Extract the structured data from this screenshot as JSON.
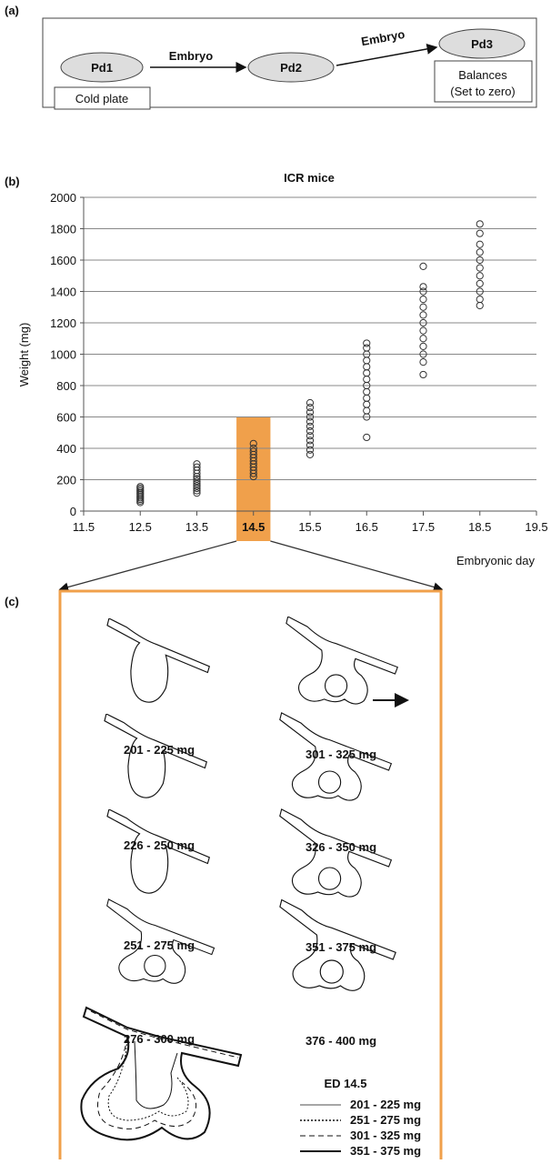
{
  "panel_a": {
    "label": "(a)",
    "nodes": [
      "Pd1",
      "Pd2",
      "Pd3"
    ],
    "edges": [
      "Embryo",
      "Embryo"
    ],
    "notes": [
      "Cold plate",
      "Balances",
      "(Set to zero)"
    ]
  },
  "panel_b_label": "(b)",
  "chart_data": {
    "type": "scatter",
    "title": "ICR mice",
    "ylabel": "Weight (mg)",
    "xlabel": "Embryonic day",
    "xlim": [
      11.5,
      19.5
    ],
    "xticks": [
      11.5,
      12.5,
      13.5,
      14.5,
      15.5,
      16.5,
      17.5,
      18.5,
      19.5
    ],
    "ylim": [
      0,
      2000
    ],
    "yticks": [
      0,
      200,
      400,
      600,
      800,
      1000,
      1200,
      1400,
      1600,
      1800,
      2000
    ],
    "grid": true,
    "highlight": {
      "xlim": [
        14.2,
        14.8
      ],
      "ylim": [
        0,
        600
      ],
      "color": "#f0a04b"
    },
    "series": [
      {
        "color": "#333333",
        "x": [
          12.5,
          12.5,
          12.5,
          12.5,
          12.5,
          12.5,
          12.5,
          12.5,
          12.5,
          12.5,
          12.5,
          13.5,
          13.5,
          13.5,
          13.5,
          13.5,
          13.5,
          13.5,
          13.5,
          13.5,
          13.5,
          13.5,
          13.5,
          14.5,
          14.5,
          14.5,
          14.5,
          14.5,
          14.5,
          14.5,
          14.5,
          14.5,
          14.5,
          14.5,
          15.5,
          15.5,
          15.5,
          15.5,
          15.5,
          15.5,
          15.5,
          15.5,
          15.5,
          15.5,
          15.5,
          15.5,
          16.5,
          16.5,
          16.5,
          16.5,
          16.5,
          16.5,
          16.5,
          16.5,
          16.5,
          16.5,
          16.5,
          16.5,
          16.5,
          16.5,
          17.5,
          17.5,
          17.5,
          17.5,
          17.5,
          17.5,
          17.5,
          17.5,
          17.5,
          17.5,
          17.5,
          17.5,
          17.5,
          18.5,
          18.5,
          18.5,
          18.5,
          18.5,
          18.5,
          18.5,
          18.5,
          18.5,
          18.5,
          18.5
        ],
        "values": [
          55,
          65,
          75,
          85,
          95,
          105,
          115,
          125,
          135,
          145,
          155,
          115,
          130,
          145,
          160,
          175,
          190,
          205,
          220,
          240,
          260,
          280,
          300,
          220,
          240,
          260,
          280,
          300,
          320,
          340,
          360,
          380,
          400,
          430,
          360,
          390,
          420,
          450,
          480,
          510,
          540,
          570,
          600,
          630,
          660,
          690,
          470,
          600,
          640,
          680,
          720,
          760,
          800,
          840,
          880,
          920,
          960,
          1000,
          1040,
          1070,
          870,
          950,
          1000,
          1050,
          1100,
          1150,
          1200,
          1250,
          1300,
          1350,
          1400,
          1430,
          1560,
          1310,
          1350,
          1400,
          1450,
          1500,
          1550,
          1600,
          1650,
          1700,
          1770,
          1830
        ]
      }
    ]
  },
  "panel_c": {
    "label": "(c)",
    "ranges_left": [
      "201 - 225 mg",
      "226 - 250 mg",
      "251 - 275 mg",
      "276 - 300 mg"
    ],
    "ranges_right": [
      "301 - 325 mg",
      "326 - 350 mg",
      "351 - 375 mg",
      "376 - 400 mg"
    ],
    "legend_title": "ED 14.5",
    "legend": [
      "201 - 225 mg",
      "251 - 275 mg",
      "301 - 325 mg",
      "351 - 375 mg"
    ]
  }
}
